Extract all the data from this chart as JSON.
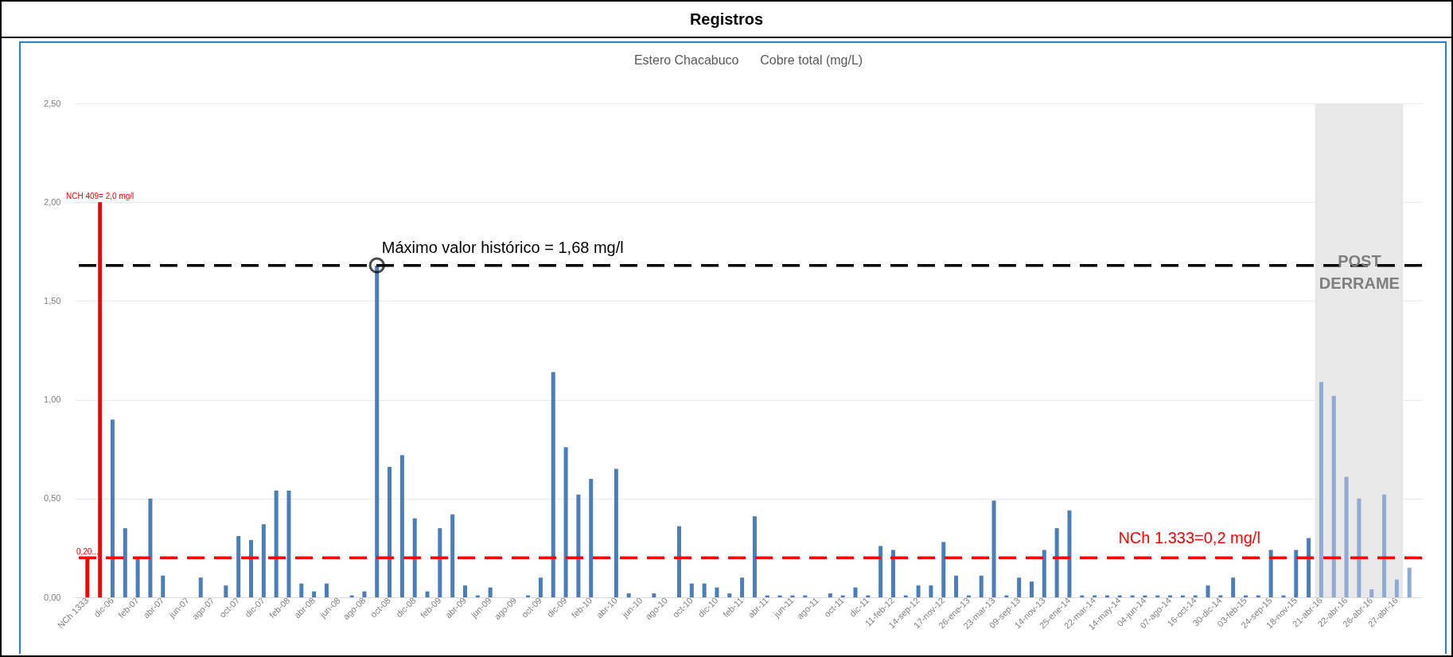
{
  "chart_data": {
    "type": "bar",
    "title": "Registros",
    "subtitle": "Estero Chacabuco      Cobre total (mg/L)",
    "categories": [
      "NCh 1333",
      null,
      "dic-06",
      null,
      "feb-07",
      null,
      "abr-07",
      null,
      "jun-07",
      null,
      "ago-07",
      null,
      "oct-07",
      null,
      "dic-07",
      null,
      "feb-08",
      null,
      "abr-08",
      null,
      "jun-08",
      null,
      "ago-08",
      null,
      "oct-08",
      null,
      "dic-08",
      null,
      "feb-09",
      null,
      "abr-09",
      null,
      "jun-09",
      null,
      "ago-09",
      null,
      "oct-09",
      null,
      "dic-09",
      null,
      "feb-10",
      null,
      "abr-10",
      null,
      "jun-10",
      null,
      "ago-10",
      null,
      "oct-10",
      null,
      "dic-10",
      null,
      "feb-11",
      null,
      "abr-11",
      null,
      "jun-11",
      null,
      "ago-11",
      null,
      "oct-11",
      null,
      "dic-11",
      null,
      "11-feb-12",
      null,
      "14-sep-12",
      null,
      "17-nov-12",
      null,
      "26-ene-13",
      null,
      "23-mar-13",
      null,
      "09-sep-13",
      null,
      "14-nov-13",
      null,
      "25-ene-14",
      null,
      "22-mar-14",
      null,
      "14-may-14",
      null,
      "04-jun-14",
      null,
      "07-ago-14",
      null,
      "16-oct-14",
      null,
      "30-dic-14",
      null,
      "03-feb-15",
      null,
      "24-sep-15",
      null,
      "18-nov-15",
      null,
      "21-abr-16",
      null,
      "22-abr-16",
      null,
      "26-abr-16",
      null,
      "27-abr-16",
      null
    ],
    "values": [
      0.2,
      2.0,
      0.9,
      0.35,
      0.2,
      0.5,
      0.11,
      null,
      null,
      0.1,
      null,
      0.06,
      0.31,
      0.29,
      0.37,
      0.54,
      0.54,
      0.07,
      0.03,
      0.07,
      null,
      0.01,
      0.03,
      1.68,
      0.66,
      0.72,
      0.4,
      0.03,
      0.35,
      0.42,
      0.06,
      0.01,
      0.05,
      null,
      null,
      0.01,
      0.1,
      1.14,
      0.76,
      0.52,
      0.6,
      null,
      0.65,
      0.02,
      null,
      0.02,
      null,
      0.36,
      0.07,
      0.07,
      0.05,
      0.02,
      0.1,
      0.41,
      0.01,
      0.01,
      0.01,
      0.01,
      null,
      0.02,
      0.01,
      0.05,
      0.01,
      0.26,
      0.24,
      0.01,
      0.06,
      0.06,
      0.28,
      0.11,
      0.01,
      0.11,
      0.49,
      0.01,
      0.1,
      0.08,
      0.24,
      0.35,
      0.44,
      0.01,
      0.01,
      0.01,
      0.01,
      0.01,
      0.01,
      0.01,
      0.01,
      0.01,
      0.01,
      0.06,
      0.01,
      0.1,
      0.01,
      0.01,
      0.24,
      0.01,
      0.24,
      0.3,
      1.09,
      1.02,
      0.61,
      0.5,
      0.04,
      0.52,
      0.09,
      0.15
    ],
    "colors": [
      "#ff0000",
      "#ff0000",
      "#4a7ebb",
      "#4a7ebb",
      "#4a7ebb",
      "#4a7ebb",
      "#4a7ebb",
      "#4a7ebb",
      "#4a7ebb",
      "#4a7ebb",
      "#4a7ebb",
      "#4a7ebb",
      "#4a7ebb",
      "#4a7ebb",
      "#4a7ebb",
      "#4a7ebb",
      "#4a7ebb",
      "#4a7ebb",
      "#4a7ebb",
      "#4a7ebb",
      "#4a7ebb",
      "#4a7ebb",
      "#4a7ebb",
      "#4a7ebb",
      "#4a7ebb",
      "#4a7ebb",
      "#4a7ebb",
      "#4a7ebb",
      "#4a7ebb",
      "#4a7ebb",
      "#4a7ebb",
      "#4a7ebb",
      "#4a7ebb",
      "#4a7ebb",
      "#4a7ebb",
      "#4a7ebb",
      "#4a7ebb",
      "#4a7ebb",
      "#4a7ebb",
      "#4a7ebb",
      "#4a7ebb",
      "#4a7ebb",
      "#4a7ebb",
      "#4a7ebb",
      "#4a7ebb",
      "#4a7ebb",
      "#4a7ebb",
      "#4a7ebb",
      "#4a7ebb",
      "#4a7ebb",
      "#4a7ebb",
      "#4a7ebb",
      "#4a7ebb",
      "#4a7ebb",
      "#4a7ebb",
      "#4a7ebb",
      "#4a7ebb",
      "#4a7ebb",
      "#4a7ebb",
      "#4a7ebb",
      "#4a7ebb",
      "#4a7ebb",
      "#4a7ebb",
      "#4a7ebb",
      "#4a7ebb",
      "#4a7ebb",
      "#4a7ebb",
      "#4a7ebb",
      "#4a7ebb",
      "#4a7ebb",
      "#4a7ebb",
      "#4a7ebb",
      "#4a7ebb",
      "#4a7ebb",
      "#4a7ebb",
      "#4a7ebb",
      "#4a7ebb",
      "#4a7ebb",
      "#4a7ebb",
      "#4a7ebb",
      "#4a7ebb",
      "#4a7ebb",
      "#4a7ebb",
      "#4a7ebb",
      "#4a7ebb",
      "#4a7ebb",
      "#4a7ebb",
      "#4a7ebb",
      "#4a7ebb",
      "#4a7ebb",
      "#4a7ebb",
      "#4a7ebb",
      "#4a7ebb",
      "#4a7ebb",
      "#4a7ebb",
      "#4a7ebb",
      "#4a7ebb",
      "#4a7ebb",
      "#8fabd3",
      "#8fabd3",
      "#8fabd3",
      "#8fabd3",
      "#8fabd3",
      "#8fabd3",
      "#8fabd3",
      "#8fabd3"
    ],
    "value_labels": [
      "0,20...",
      "NCH 409= 2,0 mg/l",
      null,
      null,
      null,
      null,
      null,
      null,
      null,
      null,
      null,
      null,
      null,
      null,
      null,
      null,
      null,
      null,
      null,
      null,
      null,
      null,
      null,
      null,
      null,
      null,
      null,
      null,
      null,
      null,
      null,
      null,
      null,
      null,
      null,
      null,
      null,
      null,
      null,
      null,
      null,
      null,
      null,
      null,
      null,
      null,
      null,
      null,
      null,
      null,
      null,
      null,
      null,
      null,
      null,
      null,
      null,
      null,
      null,
      null,
      null,
      null,
      null,
      null,
      null,
      null,
      null,
      null,
      null,
      null,
      null,
      null,
      null,
      null,
      null,
      null,
      null,
      null,
      null,
      null,
      null,
      null,
      null,
      null,
      null,
      null,
      null,
      null,
      null,
      null,
      null,
      null,
      null,
      null,
      null,
      null,
      null,
      null,
      null,
      null,
      null,
      null,
      null,
      null,
      null,
      null
    ],
    "ylim": [
      0,
      2.5
    ],
    "yticks": [
      {
        "value": 0,
        "label": "0,00"
      },
      {
        "value": 0.5,
        "label": "0,50"
      },
      {
        "value": 1,
        "label": "1,00"
      },
      {
        "value": 1.5,
        "label": "1,50"
      },
      {
        "value": 2,
        "label": "2,00"
      },
      {
        "value": 2.5,
        "label": "2,50"
      }
    ],
    "grid": "y",
    "ref_lines": [
      {
        "axis": "y",
        "value": 1.68,
        "label": "Máximo valor histórico = 1,68 mg/l",
        "color": "#000000",
        "line_style": "dashed"
      },
      {
        "axis": "y",
        "value": 0.2,
        "label": "NCh 1.333=0,2 mg/l",
        "color": "#ff0000",
        "line_style": "dashed"
      }
    ],
    "bands": [
      {
        "axis": "x",
        "from": "21-abr-16",
        "to": "27-abr-16",
        "label": "POST DERRAME",
        "color": "#e8e8e8"
      }
    ]
  }
}
